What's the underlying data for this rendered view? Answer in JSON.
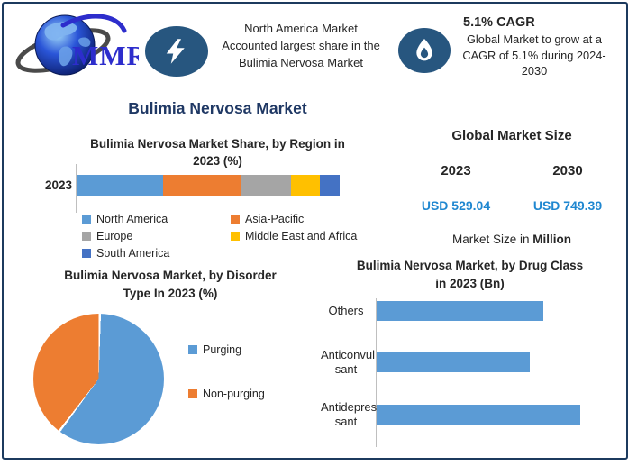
{
  "header": {
    "logo_text": "MMR",
    "highlight_share": {
      "lines": [
        "North America Market",
        "Accounted largest share in the",
        "Bulimia Nervosa Market"
      ]
    },
    "highlight_cagr": {
      "title": "5.1% CAGR",
      "lines": [
        "Global Market to grow at a",
        "CAGR of 5.1% during 2024-",
        "2030"
      ]
    }
  },
  "title": "Bulimia Nervosa Market",
  "market_size": {
    "title": "Global Market Size",
    "year_start": "2023",
    "year_end": "2030",
    "value_start": "USD 529.04",
    "value_end": "USD 749.39",
    "caption_prefix": "Market Size in ",
    "caption_bold": "Million",
    "value_color": "#1F87D0"
  },
  "colors": {
    "frame_border": "#1C3A5E",
    "icon_navy": "#27567F",
    "title_navy": "#1F3864",
    "axis_gray": "#BFBFBF"
  },
  "chart_data": [
    {
      "type": "bar",
      "variant": "stacked-horizontal",
      "title": "Bulimia Nervosa Market Share, by Region in 2023 (%)",
      "title_lines": [
        "Bulimia Nervosa Market Share, by Region in",
        "2023 (%)"
      ],
      "categories": [
        "2023"
      ],
      "series": [
        {
          "name": "North America",
          "value": 33,
          "color": "#5B9BD5"
        },
        {
          "name": "Asia-Pacific",
          "value": 29.5,
          "color": "#ED7D31"
        },
        {
          "name": "Europe",
          "value": 19,
          "color": "#A5A5A5"
        },
        {
          "name": "Middle East and Africa",
          "value": 11,
          "color": "#FFC000"
        },
        {
          "name": "South America",
          "value": 7.5,
          "color": "#4472C4"
        }
      ],
      "unit": "%",
      "legend_position": "bottom"
    },
    {
      "type": "pie",
      "title": "Bulimia Nervosa Market, by Disorder Type In 2023 (%)",
      "title_lines": [
        "Bulimia Nervosa Market, by Disorder",
        "Type In 2023 (%)"
      ],
      "slices": [
        {
          "name": "Purging",
          "value": 60,
          "color": "#5B9BD5"
        },
        {
          "name": "Non-purging",
          "value": 40,
          "color": "#ED7D31"
        }
      ],
      "start_angle": "top",
      "direction": "clockwise",
      "legend_position": "right"
    },
    {
      "type": "bar",
      "variant": "horizontal",
      "title": "Bulimia Nervosa Market, by Drug Class in 2023 (Bn)",
      "title_lines": [
        "Bulimia Nervosa Market, by Drug Class",
        "in 2023 (Bn)"
      ],
      "bars": [
        {
          "name": "Others",
          "label": "Others",
          "value": 0.82
        },
        {
          "name": "Anticonvulsant",
          "label": "Anticonvul\nsant",
          "value": 0.75
        },
        {
          "name": "Antidepressant",
          "label": "Antidepres\nsant",
          "value": 1.0
        }
      ],
      "bar_color": "#5B9BD5",
      "xlim": [
        0,
        1.1
      ],
      "grid": false
    }
  ]
}
